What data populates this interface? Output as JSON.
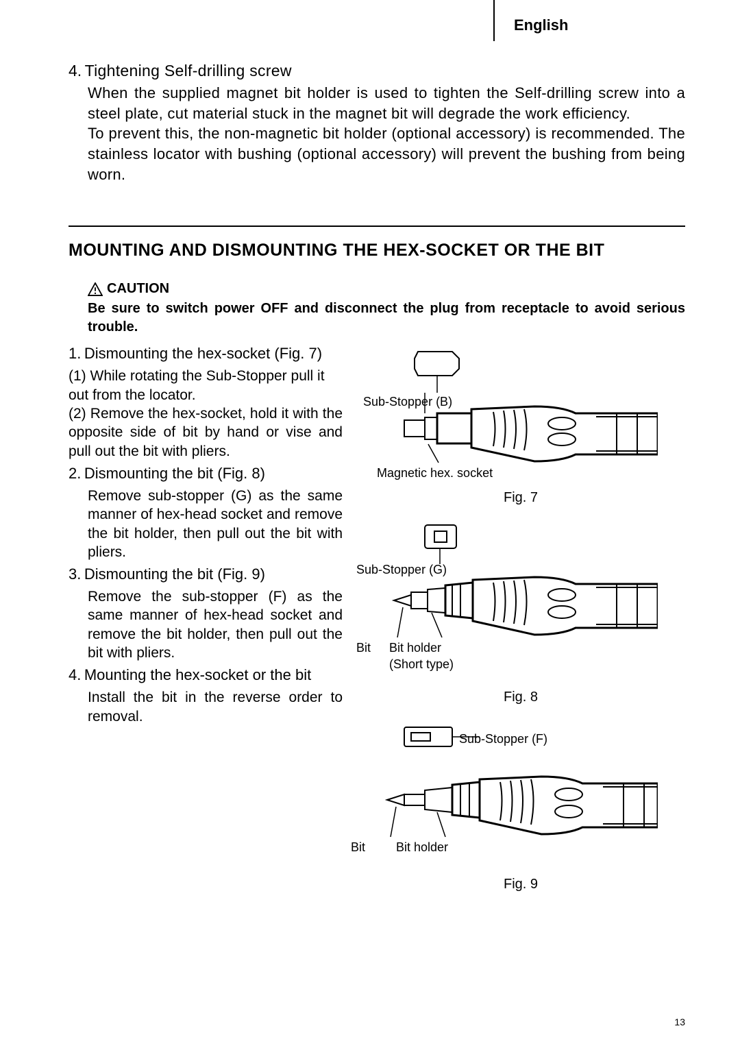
{
  "language": "English",
  "top_section": {
    "number": "4.",
    "title": "Tightening Self-drilling screw",
    "body": "When the supplied magnet bit holder is used to tighten the Self-drilling screw into a steel plate, cut material stuck in the magnet bit will degrade the work efficiency.\nTo prevent this, the non-magnetic bit holder (optional accessory) is recommended. The stainless locator with bushing (optional accessory) will prevent the bushing from being worn."
  },
  "section_heading": "MOUNTING AND DISMOUNTING THE HEX-SOCKET OR THE BIT",
  "caution": {
    "label": "CAUTION",
    "body": "Be sure to switch power OFF and disconnect the plug from receptacle to avoid serious trouble."
  },
  "items": [
    {
      "number": "1.",
      "title": "Dismounting the hex-socket (Fig. 7)",
      "subitems": [
        {
          "paren": "(1)",
          "text": "While rotating the Sub-Stopper pull it out from the locator."
        },
        {
          "paren": "(2)",
          "text": "Remove the hex-socket, hold it with the opposite side of bit by hand or vise and pull out the bit with pliers."
        }
      ]
    },
    {
      "number": "2.",
      "title": "Dismounting the bit (Fig. 8)",
      "body": "Remove sub-stopper (G) as the same manner of hex-head socket and remove the bit holder, then pull out the bit with pliers."
    },
    {
      "number": "3.",
      "title": "Dismounting the bit (Fig. 9)",
      "body": "Remove the sub-stopper (F) as the same manner of hex-head socket and remove the bit holder, then pull out the bit with pliers."
    },
    {
      "number": "4.",
      "title": "Mounting the hex-socket or the bit",
      "body": "Install the bit in the reverse order to removal."
    }
  ],
  "figures": [
    {
      "caption": "Fig. 7",
      "labels": {
        "top": "Sub-Stopper (B)",
        "bottom": "Magnetic hex. socket"
      }
    },
    {
      "caption": "Fig. 8",
      "labels": {
        "top": "Sub-Stopper (G)",
        "left": "Bit",
        "mid": "Bit holder\n(Short type)"
      }
    },
    {
      "caption": "Fig. 9",
      "labels": {
        "right": "Sub-Stopper (F)",
        "left": "Bit",
        "mid": "Bit holder"
      }
    }
  ],
  "page_number": "13",
  "colors": {
    "text": "#000000",
    "bg": "#ffffff"
  }
}
